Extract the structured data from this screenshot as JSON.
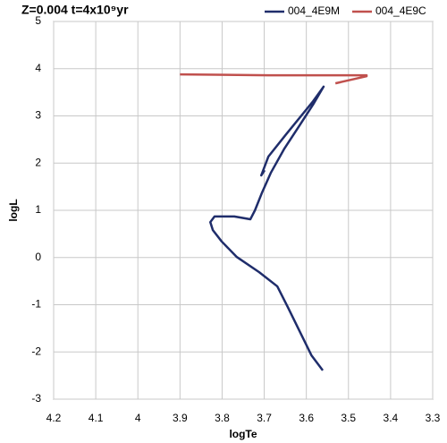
{
  "chart_data": {
    "type": "line",
    "title": "Z=0.004 t=4x10⁹yr",
    "x_label": "logTe",
    "y_label": "logL",
    "xlim": [
      4.2,
      3.3
    ],
    "xticks": [
      4.2,
      4.1,
      4,
      3.9,
      3.8,
      3.7,
      3.6,
      3.5,
      3.4,
      3.3
    ],
    "ylim": [
      -3,
      5
    ],
    "yticks": [
      -3,
      -2,
      -1,
      0,
      1,
      2,
      3,
      4,
      5
    ],
    "grid": true,
    "legend": "top-right",
    "series": [
      {
        "name": "004_4E9M",
        "color": "#1f2d6b",
        "x": [
          3.561,
          3.588,
          3.616,
          3.644,
          3.669,
          3.712,
          3.765,
          3.801,
          3.822,
          3.828,
          3.818,
          3.771,
          3.733,
          3.722,
          3.705,
          3.684,
          3.652,
          3.616,
          3.584,
          3.559,
          3.584,
          3.648,
          3.69,
          3.707,
          3.699
        ],
        "values": [
          -2.39,
          -2.07,
          -1.56,
          -1.05,
          -0.61,
          -0.31,
          0.01,
          0.34,
          0.58,
          0.75,
          0.87,
          0.87,
          0.81,
          1.0,
          1.38,
          1.8,
          2.31,
          2.8,
          3.24,
          3.62,
          3.31,
          2.61,
          2.14,
          1.74,
          1.85
        ]
      },
      {
        "name": "004_4E9C",
        "color": "#c0504d",
        "x": [
          3.531,
          3.457,
          3.457,
          3.69,
          3.9
        ],
        "values": [
          3.69,
          3.84,
          3.86,
          3.86,
          3.88
        ]
      }
    ]
  }
}
